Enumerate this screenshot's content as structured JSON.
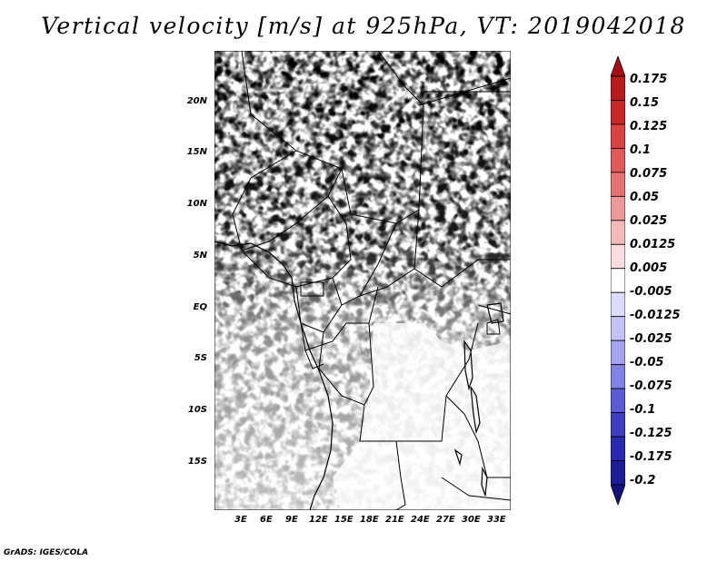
{
  "title": "Vertical velocity [m/s] at 925hPa, VT: 2019042018",
  "footer": "GrADS: IGES/COLA",
  "map": {
    "region": "Central Africa",
    "lat_labels": [
      "20N",
      "15N",
      "10N",
      "5N",
      "EQ",
      "5S",
      "10S",
      "15S"
    ],
    "lon_labels": [
      "3E",
      "6E",
      "9E",
      "12E",
      "15E",
      "18E",
      "21E",
      "24E",
      "27E",
      "30E",
      "33E"
    ]
  },
  "colorbar": {
    "labels": [
      "0.175",
      "0.15",
      "0.125",
      "0.1",
      "0.075",
      "0.05",
      "0.025",
      "0.0125",
      "0.005",
      "-0.005",
      "-0.0125",
      "-0.025",
      "-0.05",
      "-0.075",
      "-0.1",
      "-0.125",
      "-0.175",
      "-0.2"
    ],
    "colors": [
      "#a50f15",
      "#b71c1c",
      "#c62828",
      "#d84343",
      "#e05a5a",
      "#e57373",
      "#ef9a9a",
      "#f4b9b9",
      "#fbdcdc",
      "#ffffff",
      "#dcdcff",
      "#c2c2f5",
      "#a3a3ee",
      "#8080e6",
      "#5c5cd6",
      "#3f3fc4",
      "#2a2ab0",
      "#1d1d99",
      "#12127a"
    ]
  },
  "chart_data": {
    "type": "heatmap",
    "title": "Vertical velocity [m/s] at 925hPa, VT: 2019042018",
    "variable": "Vertical velocity",
    "units": "m/s",
    "level": "925hPa",
    "valid_time": "2019042018",
    "lon_range": [
      0,
      35
    ],
    "lat_range": [
      -20,
      24
    ],
    "contour_levels": [
      -0.2,
      -0.175,
      -0.125,
      -0.1,
      -0.075,
      -0.05,
      -0.025,
      -0.0125,
      -0.005,
      0.005,
      0.0125,
      0.025,
      0.05,
      0.075,
      0.1,
      0.125,
      0.15,
      0.175
    ]
  }
}
